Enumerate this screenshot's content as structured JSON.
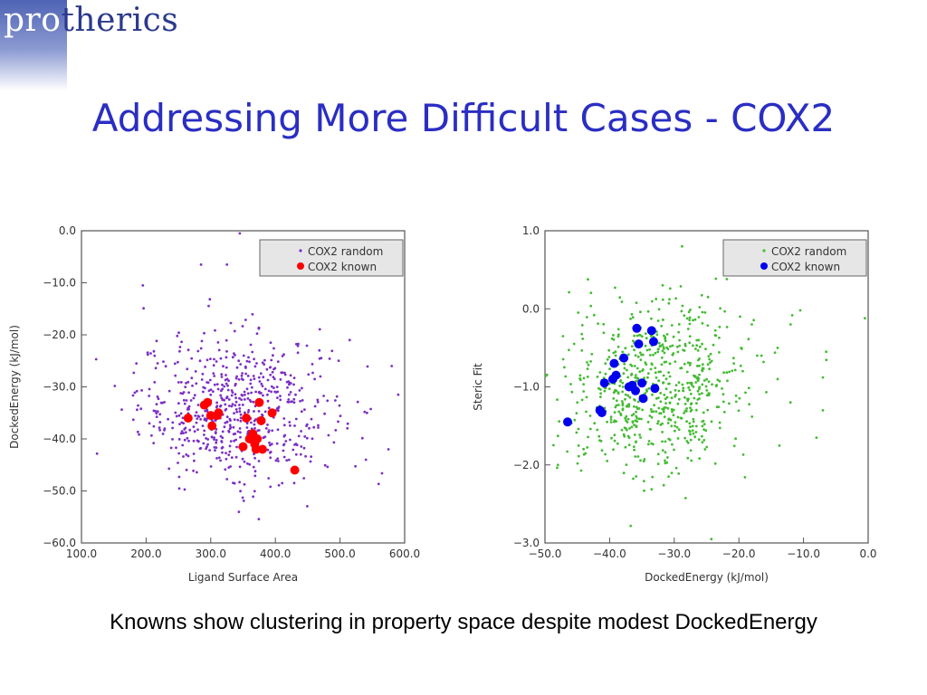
{
  "logo": {
    "part1": "pro",
    "part2": "therics"
  },
  "slide": {
    "title": "Addressing More Difficult Cases - COX2",
    "caption": "Knowns show clustering in property space despite modest DockedEnergy"
  },
  "chart_data": [
    {
      "type": "scatter",
      "xlabel": "Ligand Surface Area",
      "ylabel": "DockedEnergy (kJ/mol)",
      "xlim": [
        100,
        600
      ],
      "ylim": [
        -60,
        0
      ],
      "xticks": [
        "100.0",
        "200.0",
        "300.0",
        "400.0",
        "500.0",
        "600.0"
      ],
      "yticks": [
        "0.0",
        "−10.0",
        "−20.0",
        "−30.0",
        "−40.0",
        "−50.0",
        "−60.0"
      ],
      "grid": false,
      "legend_position": "top-right",
      "series": [
        {
          "name": "COX2 random",
          "color": "#7b2fc4",
          "marker": "small-dot",
          "distribution": {
            "kind": "random-cloud",
            "n": 650,
            "center": [
              340,
              -34
            ],
            "spread": [
              75,
              7
            ]
          },
          "points": [
            [
              345,
              -0.5
            ],
            [
              285,
              -6.5
            ],
            [
              325,
              -6.5
            ],
            [
              405,
              -8.5
            ],
            [
              195,
              -10.5
            ],
            [
              515,
              -21
            ],
            [
              185,
              -25.5
            ],
            [
              580,
              -26
            ],
            [
              590,
              -31.5
            ],
            [
              575,
              -42
            ],
            [
              540,
              -44
            ],
            [
              205,
              -37
            ]
          ]
        },
        {
          "name": "COX2 known",
          "color": "#ff0000",
          "marker": "large-dot",
          "points": [
            [
              265,
              -36
            ],
            [
              290,
              -33.5
            ],
            [
              295,
              -33
            ],
            [
              300,
              -35.5
            ],
            [
              302,
              -37.5
            ],
            [
              310,
              -35.5
            ],
            [
              312,
              -35
            ],
            [
              355,
              -36
            ],
            [
              360,
              -40
            ],
            [
              365,
              -39
            ],
            [
              368,
              -41
            ],
            [
              370,
              -42
            ],
            [
              372,
              -40
            ],
            [
              375,
              -33
            ],
            [
              378,
              -36.5
            ],
            [
              380,
              -42
            ],
            [
              395,
              -35
            ],
            [
              350,
              -41.5
            ],
            [
              430,
              -46
            ]
          ]
        }
      ]
    },
    {
      "type": "scatter",
      "xlabel": "DockedEnergy (kJ/mol)",
      "ylabel": "Steric Fit",
      "xlim": [
        -50,
        0
      ],
      "ylim": [
        -3,
        1
      ],
      "xticks": [
        "−50.0",
        "−40.0",
        "−30.0",
        "−20.0",
        "−10.0",
        "0.0"
      ],
      "yticks": [
        "1.0",
        "0.0",
        "−1.0",
        "−2.0",
        "−3.0"
      ],
      "grid": false,
      "legend_position": "top-right",
      "series": [
        {
          "name": "COX2 random",
          "color": "#44bb33",
          "marker": "small-dot",
          "distribution": {
            "kind": "random-cloud",
            "n": 700,
            "center": [
              -33,
              -1.0
            ],
            "spread": [
              7,
              0.55
            ]
          },
          "points": [
            [
              -10.5,
              -0.02
            ],
            [
              -12,
              -0.2
            ],
            [
              -14,
              -0.5
            ],
            [
              -6.5,
              -0.55
            ],
            [
              -16.5,
              -0.6
            ],
            [
              -0.5,
              -0.12
            ],
            [
              -14,
              -0.9
            ],
            [
              -7,
              -0.88
            ],
            [
              -8,
              -1.65
            ],
            [
              -48,
              -2.0
            ],
            [
              -18,
              -0.2
            ],
            [
              -47,
              -0.75
            ],
            [
              -45,
              -1.2
            ]
          ]
        },
        {
          "name": "COX2 known",
          "color": "#0000ee",
          "marker": "large-dot",
          "points": [
            [
              -46.5,
              -1.45
            ],
            [
              -41.5,
              -1.3
            ],
            [
              -41.2,
              -1.33
            ],
            [
              -40.8,
              -0.95
            ],
            [
              -39.5,
              -0.9
            ],
            [
              -39.3,
              -0.7
            ],
            [
              -39,
              -0.85
            ],
            [
              -37.8,
              -0.63
            ],
            [
              -37,
              -1.0
            ],
            [
              -36.5,
              -0.98
            ],
            [
              -36,
              -1.05
            ],
            [
              -35.8,
              -0.25
            ],
            [
              -35.5,
              -0.45
            ],
            [
              -35,
              -0.95
            ],
            [
              -34.8,
              -1.15
            ],
            [
              -33.5,
              -0.28
            ],
            [
              -33.2,
              -0.42
            ],
            [
              -33,
              -1.02
            ]
          ]
        }
      ]
    }
  ]
}
